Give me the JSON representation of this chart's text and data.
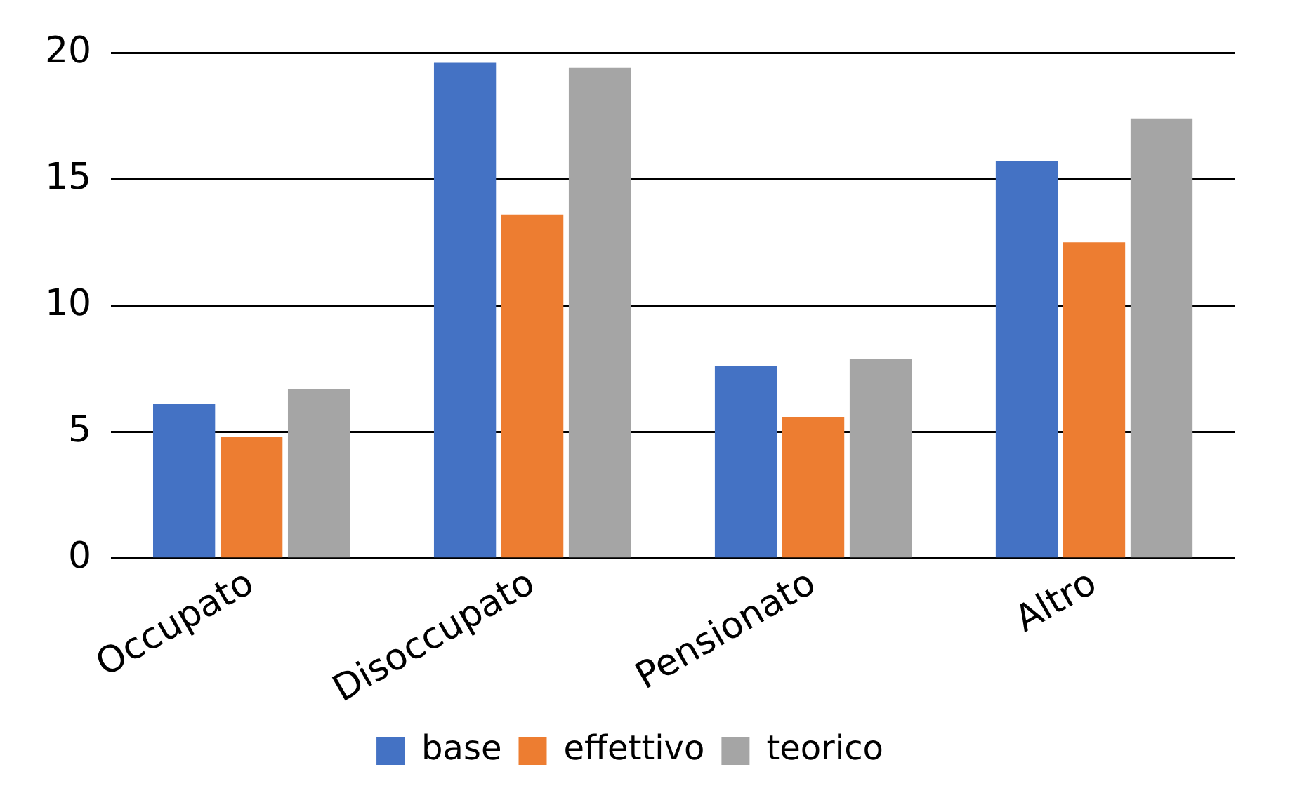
{
  "chart_data": {
    "type": "bar",
    "categories": [
      "Occupato",
      "Disoccupato",
      "Pensionato",
      "Altro"
    ],
    "series": [
      {
        "name": "base",
        "color": "#4472c4",
        "values": [
          6.1,
          19.6,
          7.6,
          15.7
        ]
      },
      {
        "name": "effettivo",
        "color": "#ed7d31",
        "values": [
          4.8,
          13.6,
          5.6,
          12.5
        ]
      },
      {
        "name": "teorico",
        "color": "#a5a5a5",
        "values": [
          6.7,
          19.4,
          7.9,
          17.4
        ]
      }
    ],
    "ylim": [
      0,
      20
    ],
    "yticks": [
      0,
      5,
      10,
      15,
      20
    ],
    "grid": "y",
    "legend": "bottom"
  }
}
